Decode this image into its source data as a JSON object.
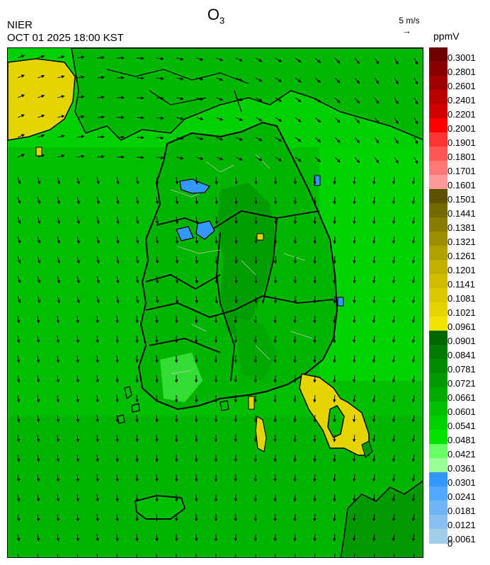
{
  "header": {
    "title_main": "O",
    "title_sub": "3",
    "agency": "NIER",
    "timestamp": "OCT 01 2025 18:00 KST",
    "wind_scale_label": "5 m/s",
    "unit": "ppmV"
  },
  "legend": {
    "labels": [
      "0.3001",
      "0.2801",
      "0.2601",
      "0.2401",
      "0.2201",
      "0.2001",
      "0.1901",
      "0.1801",
      "0.1701",
      "0.1601",
      "0.1501",
      "0.1441",
      "0.1381",
      "0.1321",
      "0.1261",
      "0.1201",
      "0.1141",
      "0.1081",
      "0.1021",
      "0.0961",
      "0.0901",
      "0.0841",
      "0.0781",
      "0.0721",
      "0.0661",
      "0.0601",
      "0.0541",
      "0.0481",
      "0.0421",
      "0.0361",
      "0.0301",
      "0.0241",
      "0.0181",
      "0.0121",
      "0.0061",
      "0"
    ],
    "colors": [
      "#6e0000",
      "#8a0000",
      "#a00000",
      "#b80000",
      "#d00000",
      "#ff0000",
      "#ff3333",
      "#ff5555",
      "#ff7777",
      "#ff9999",
      "#5c5200",
      "#736800",
      "#897c00",
      "#9c8e00",
      "#b0a000",
      "#c2b000",
      "#d0bd00",
      "#dac700",
      "#e6d400",
      "#f3e300",
      "#006600",
      "#007a00",
      "#008a00",
      "#009a00",
      "#00aa00",
      "#00be00",
      "#00d000",
      "#00e400",
      "#66ff66",
      "#99ff99",
      "#3399ff",
      "#55aaff",
      "#6fb4f5",
      "#88c0f2",
      "#a3cde9"
    ]
  },
  "map": {
    "colors": {
      "background": "#00be00",
      "dark_zone": "#009a00",
      "light_zone": "#33dd33",
      "high_zone": "#e6d400",
      "low_zone": "#3399ff",
      "coastline": "#000000"
    }
  }
}
